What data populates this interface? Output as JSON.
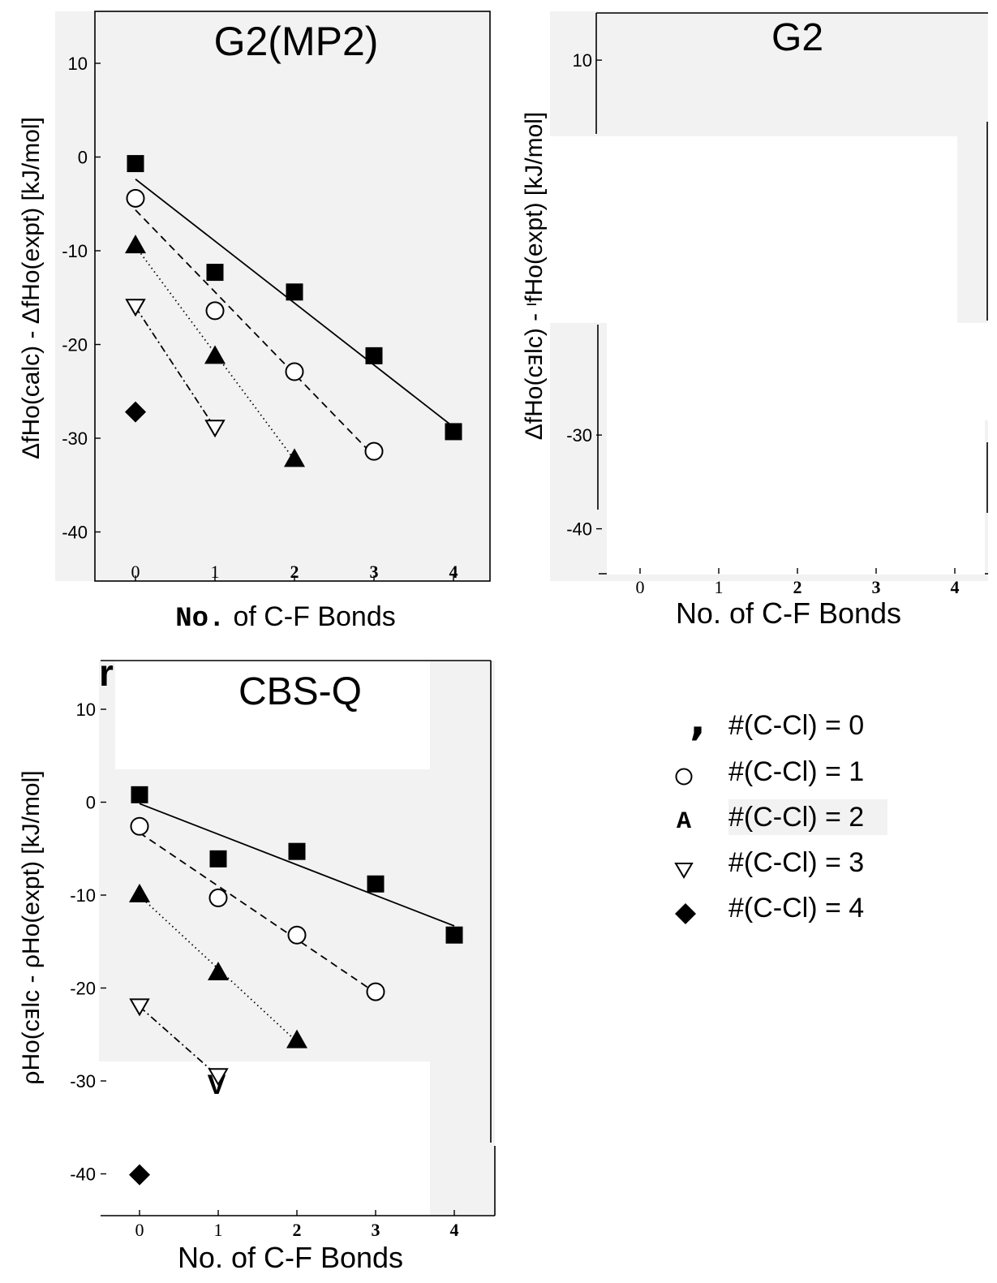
{
  "figure": {
    "legend": {
      "placement": "right of CBS-Q panel",
      "entries": [
        {
          "label": "#(C-Cl) = 0",
          "marker_glyph": ",",
          "marker": "filled-square"
        },
        {
          "label": "#(C-Cl) = 1",
          "marker_glyph": "",
          "marker": "open-circle"
        },
        {
          "label": "#(C-Cl) = 2",
          "marker_glyph": "A",
          "marker": "filled-triangle"
        },
        {
          "label": "#(C-Cl) = 3",
          "marker_glyph": "",
          "marker": "open-triangle-down"
        },
        {
          "label": "#(C-Cl) = 4",
          "marker_glyph": "",
          "marker": "filled-diamond"
        }
      ]
    },
    "stray_text": {
      "cbs_corner": "r",
      "cbs_v_glyph": "V"
    }
  },
  "chart_data": [
    {
      "type": "scatter",
      "title": "G2(MP2)",
      "xlabel_prefix": "No.",
      "xlabel_rest": "of C-F Bonds",
      "ylabel": "ΔfHo(calc) - ΔfHo(expt) [kJ/mol]",
      "xlim": [
        -0.5,
        4.5
      ],
      "ylim": [
        -45,
        15
      ],
      "grid": false,
      "background": "#f2f2f2",
      "x_ticks": [
        "0",
        "1",
        "2",
        "3",
        "4"
      ],
      "y_ticks": [
        10,
        0,
        -10,
        -20,
        -30,
        -40
      ],
      "y_tick_labels": [
        "10",
        "0",
        "-10",
        "-20",
        "-30",
        "-40"
      ],
      "series": [
        {
          "marker": "filled-square",
          "line": "solid",
          "x": [
            0,
            1,
            2,
            3,
            4
          ],
          "y": [
            -0.7,
            -12.3,
            -14.4,
            -21.2,
            -29.3
          ]
        },
        {
          "marker": "open-circle",
          "line": "dashed",
          "x": [
            0,
            1,
            2,
            3
          ],
          "y": [
            -4.4,
            -16.4,
            -22.9,
            -31.4
          ]
        },
        {
          "marker": "filled-triangle",
          "line": "dotted",
          "x": [
            0,
            1,
            2
          ],
          "y": [
            -9.4,
            -21.2,
            -32.2
          ]
        },
        {
          "marker": "open-triangle-down",
          "line": "dash-dot",
          "x": [
            0,
            1
          ],
          "y": [
            -16.0,
            -28.9
          ]
        },
        {
          "marker": "filled-diamond",
          "line": "none",
          "x": [
            0
          ],
          "y": [
            -27.2
          ]
        }
      ]
    },
    {
      "type": "scatter",
      "title": "G2",
      "xlabel_prefix": "",
      "xlabel_rest": "No. of C-F Bonds",
      "ylabel": "ΔfHo(cⱻlc) - ᶦfHo(expt) [kJ/mol]",
      "xlim": [
        -0.5,
        4.5
      ],
      "ylim": [
        -45,
        15
      ],
      "grid": false,
      "background": "#f2f2f2",
      "x_ticks": [
        "0",
        "1",
        "2",
        "3",
        "4"
      ],
      "y_ticks": [
        10,
        -30,
        -40
      ],
      "y_tick_labels": [
        "10",
        "-30",
        "-40"
      ],
      "series": []
    },
    {
      "type": "scatter",
      "title": "CBS-Q",
      "xlabel_prefix": "",
      "xlabel_rest": "No. of C-F Bonds",
      "ylabel": "ρHo(cⱻlc - ρHo(expt) [kJ/mol]",
      "xlim": [
        -0.5,
        4.5
      ],
      "ylim": [
        -45,
        15
      ],
      "grid": false,
      "background": "#f2f2f2",
      "x_ticks": [
        "0",
        "1",
        "2",
        "3",
        "4"
      ],
      "y_ticks": [
        10,
        0,
        -10,
        -20,
        -30,
        -40
      ],
      "y_tick_labels": [
        "10",
        "0",
        "-10",
        "-20",
        "-30",
        "-40"
      ],
      "series": [
        {
          "marker": "filled-square",
          "line": "solid",
          "x": [
            0,
            1,
            2,
            3,
            4
          ],
          "y": [
            0.8,
            -6.1,
            -5.3,
            -8.8,
            -14.3
          ]
        },
        {
          "marker": "open-circle",
          "line": "dashed",
          "x": [
            0,
            1,
            2,
            3
          ],
          "y": [
            -2.6,
            -10.3,
            -14.3,
            -20.4
          ]
        },
        {
          "marker": "filled-triangle",
          "line": "dotted",
          "x": [
            0,
            1,
            2
          ],
          "y": [
            -9.9,
            -18.3,
            -25.6
          ]
        },
        {
          "marker": "open-triangle-down",
          "line": "dash-dot",
          "x": [
            0,
            1
          ],
          "y": [
            -22.0,
            -29.5
          ]
        },
        {
          "marker": "filled-diamond",
          "line": "none",
          "x": [
            0
          ],
          "y": [
            -40.1
          ]
        }
      ]
    }
  ]
}
